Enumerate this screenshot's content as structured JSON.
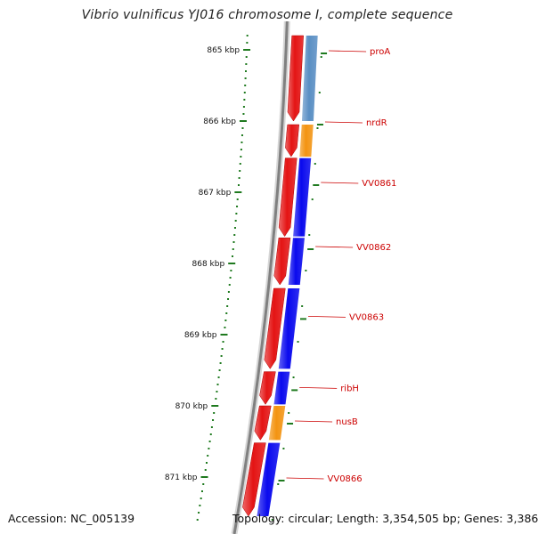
{
  "title": "Vibrio vulnificus YJ016 chromosome I, complete sequence",
  "footer": {
    "accession": "Accession: NC_005139",
    "topology": "Topology: circular; Length: 3,354,505 bp; Genes: 3,386"
  },
  "colors": {
    "backbone": "#808080",
    "forward_strand": "#e41414",
    "reverse_blue": "#0a0aee",
    "reverse_steel": "#5a8fc4",
    "reverse_orange": "#f39412",
    "tick": "#1f7a1f",
    "label": "#cc0000"
  },
  "scale": {
    "unit": "kbp",
    "ticks": [
      {
        "kbp": 865,
        "label": "865 kbp"
      },
      {
        "kbp": 866,
        "label": "866 kbp"
      },
      {
        "kbp": 867,
        "label": "867 kbp"
      },
      {
        "kbp": 868,
        "label": "868 kbp"
      },
      {
        "kbp": 869,
        "label": "869 kbp"
      },
      {
        "kbp": 870,
        "label": "870 kbp"
      },
      {
        "kbp": 871,
        "label": "871 kbp"
      }
    ]
  },
  "genes": [
    {
      "name": "proA",
      "start_kbp": 864.8,
      "end_kbp": 866.0,
      "color": "steel",
      "label_kbp": 865.0
    },
    {
      "name": "nrdR",
      "start_kbp": 866.05,
      "end_kbp": 866.5,
      "color": "orange",
      "label_kbp": 866.0
    },
    {
      "name": "VV0861",
      "start_kbp": 866.52,
      "end_kbp": 867.62,
      "color": "blue",
      "label_kbp": 866.85
    },
    {
      "name": "VV0862",
      "start_kbp": 867.64,
      "end_kbp": 868.3,
      "color": "blue",
      "label_kbp": 867.75
    },
    {
      "name": "VV0863",
      "start_kbp": 868.35,
      "end_kbp": 869.48,
      "color": "blue",
      "label_kbp": 868.73
    },
    {
      "name": "ribH",
      "start_kbp": 869.52,
      "end_kbp": 869.98,
      "color": "blue",
      "label_kbp": 869.73
    },
    {
      "name": "nusB",
      "start_kbp": 870.0,
      "end_kbp": 870.48,
      "color": "orange",
      "label_kbp": 870.2
    },
    {
      "name": "VV0866",
      "start_kbp": 870.52,
      "end_kbp": 871.55,
      "color": "blue",
      "label_kbp": 871.0
    }
  ]
}
